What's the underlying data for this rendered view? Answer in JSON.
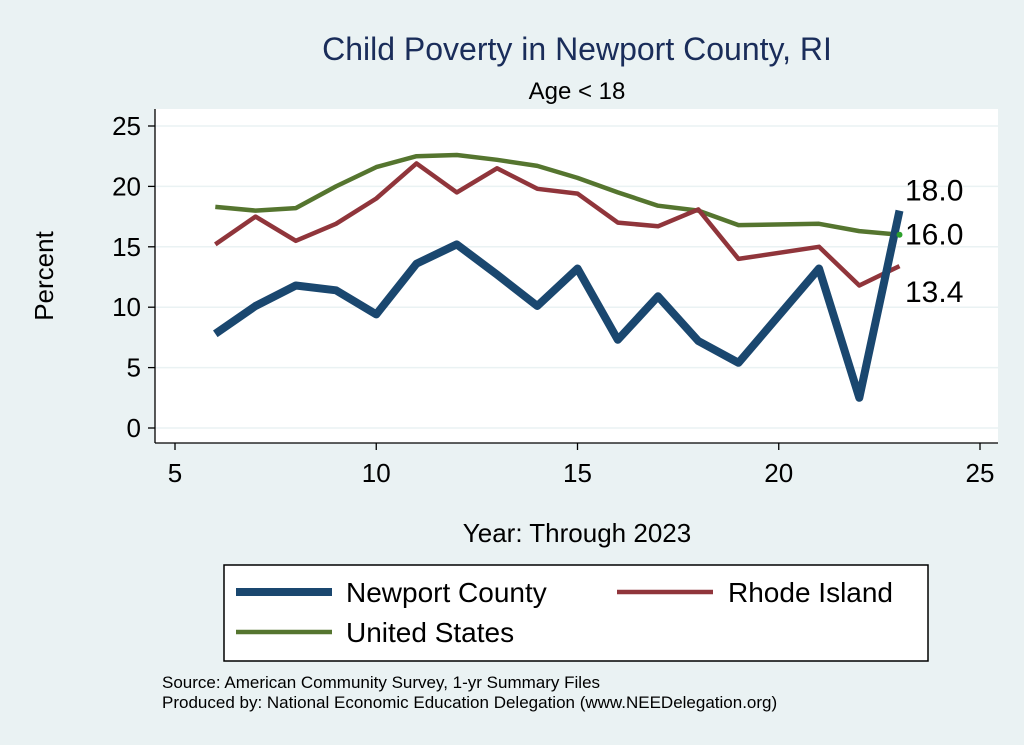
{
  "chart_data": {
    "type": "line",
    "title": "Child Poverty in Newport County, RI",
    "subtitle": "Age < 18",
    "xlabel": "Year: Through 2023",
    "ylabel": "Percent",
    "xlim": [
      5,
      25
    ],
    "ylim": [
      0,
      25
    ],
    "xticks": [
      5,
      10,
      15,
      20,
      25
    ],
    "yticks": [
      0,
      5,
      10,
      15,
      20,
      25
    ],
    "grid": true,
    "legend_position": "bottom",
    "series": [
      {
        "name": "Newport County",
        "color": "#1a476f",
        "x": [
          6,
          7,
          8,
          9,
          10,
          11,
          12,
          13,
          14,
          15,
          16,
          17,
          18,
          19,
          21,
          22,
          23
        ],
        "y": [
          7.8,
          10.1,
          11.8,
          11.4,
          9.4,
          13.6,
          15.2,
          12.7,
          10.1,
          13.2,
          7.3,
          10.9,
          7.2,
          5.4,
          13.2,
          2.5,
          18.0
        ]
      },
      {
        "name": "Rhode Island",
        "color": "#90353b",
        "x": [
          6,
          7,
          8,
          9,
          10,
          11,
          12,
          13,
          14,
          15,
          16,
          17,
          18,
          19,
          21,
          22,
          23
        ],
        "y": [
          15.2,
          17.5,
          15.5,
          16.9,
          19.0,
          21.9,
          19.5,
          21.5,
          19.8,
          19.4,
          17.0,
          16.7,
          18.1,
          14.0,
          15.0,
          11.8,
          13.4
        ]
      },
      {
        "name": "United States",
        "color": "#55752f",
        "x": [
          6,
          7,
          8,
          9,
          10,
          11,
          12,
          13,
          14,
          15,
          16,
          17,
          18,
          19,
          21,
          22,
          23
        ],
        "y": [
          18.3,
          18.0,
          18.2,
          20.0,
          21.6,
          22.5,
          22.6,
          22.2,
          21.7,
          20.7,
          19.5,
          18.4,
          18.0,
          16.8,
          16.9,
          16.3,
          16.0
        ]
      }
    ],
    "end_labels": [
      {
        "text": "18.0",
        "series": "Newport County"
      },
      {
        "text": "16.0",
        "series": "United States"
      },
      {
        "text": "13.4",
        "series": "Rhode Island"
      }
    ]
  },
  "notes": {
    "source": "Source: American Community Survey, 1-yr Summary Files",
    "produced_by": "Produced by: National Economic Education Delegation (www.NEEDelegation.org)"
  }
}
